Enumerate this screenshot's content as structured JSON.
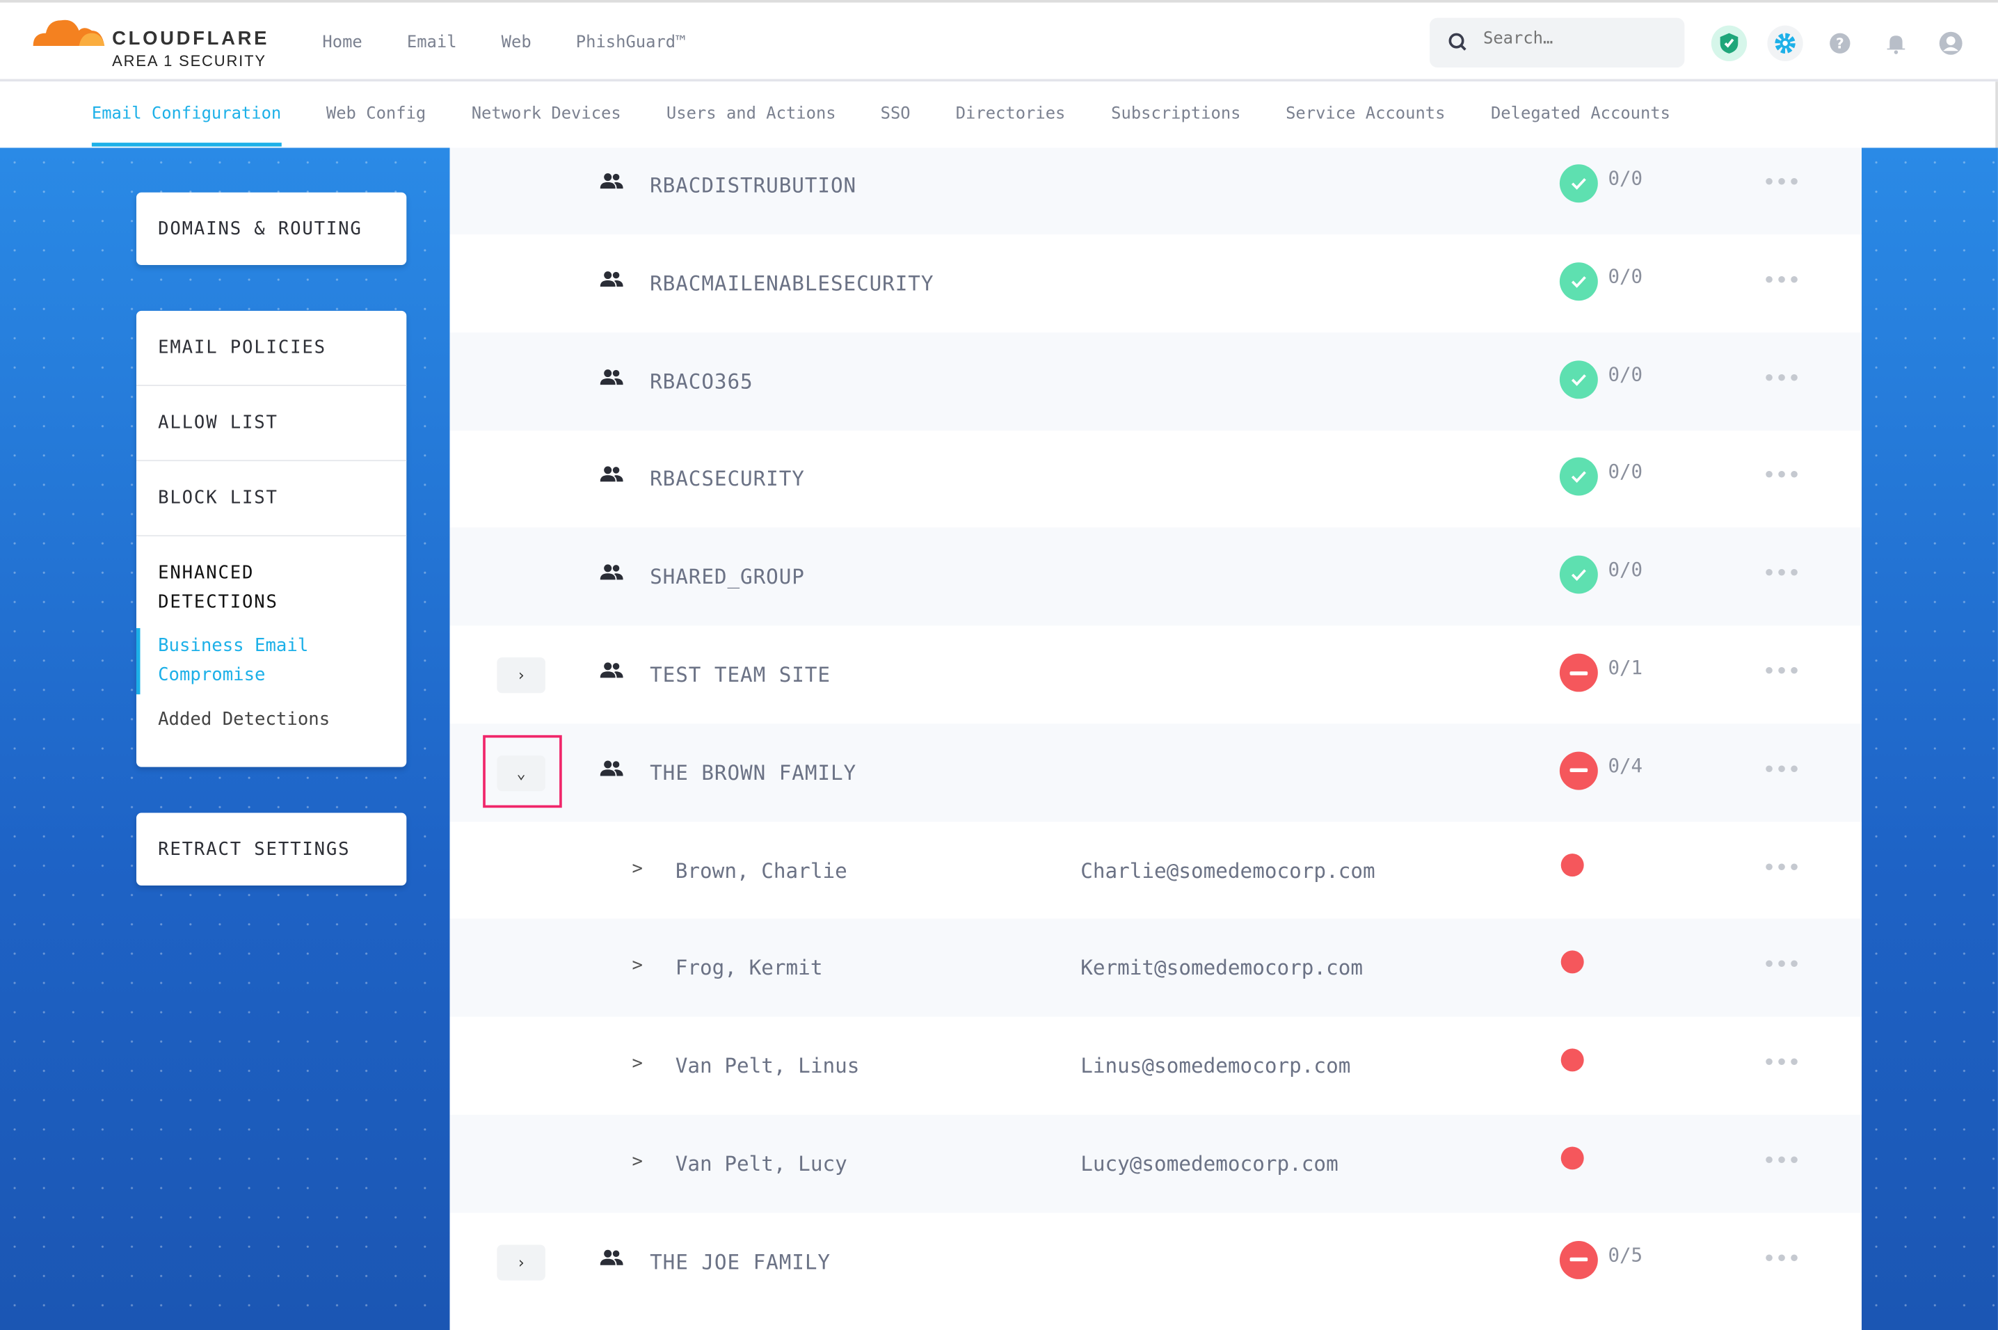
{
  "brand": {
    "name": "CLOUDFLARE",
    "product": "AREA 1 SECURITY"
  },
  "topnav": [
    "Home",
    "Email",
    "Web",
    "PhishGuard™"
  ],
  "search": {
    "placeholder": "Search…"
  },
  "header_icons": [
    "shield-check-icon",
    "gear-icon",
    "help-icon",
    "bell-icon",
    "user-icon"
  ],
  "subnav": {
    "active": "Email Configuration",
    "tabs": [
      "Email Configuration",
      "Web Config",
      "Network Devices",
      "Users and Actions",
      "SSO",
      "Directories",
      "Subscriptions",
      "Service Accounts",
      "Delegated Accounts"
    ]
  },
  "sidebar": {
    "domains": "DOMAINS & ROUTING",
    "policies": [
      "EMAIL POLICIES",
      "ALLOW LIST",
      "BLOCK LIST"
    ],
    "enhanced": "ENHANCED DETECTIONS",
    "bec": "Business Email Compromise",
    "added": "Added Detections",
    "retract": "RETRACT SETTINGS"
  },
  "colors": {
    "accent": "#1db0e8",
    "ok": "#5ee0b0",
    "error": "#f5575c",
    "highlight": "#f0266a"
  },
  "groups": [
    {
      "name": "RBACDISTRUBUTION",
      "status": "ok",
      "count": "0/0"
    },
    {
      "name": "RBACMAILENABLESECURITY",
      "status": "ok",
      "count": "0/0"
    },
    {
      "name": "RBACO365",
      "status": "ok",
      "count": "0/0"
    },
    {
      "name": "RBACSECURITY",
      "status": "ok",
      "count": "0/0"
    },
    {
      "name": "SHARED_GROUP",
      "status": "ok",
      "count": "0/0"
    },
    {
      "name": "TEST TEAM SITE",
      "status": "error",
      "count": "0/1",
      "expandable": true
    },
    {
      "name": "THE BROWN FAMILY",
      "status": "error",
      "count": "0/4",
      "expanded": true,
      "members": [
        {
          "name": "Brown, Charlie",
          "email": "Charlie@somedemocorp.com"
        },
        {
          "name": "Frog, Kermit",
          "email": "Kermit@somedemocorp.com"
        },
        {
          "name": "Van Pelt, Linus",
          "email": "Linus@somedemocorp.com"
        },
        {
          "name": "Van Pelt, Lucy",
          "email": "Lucy@somedemocorp.com"
        }
      ]
    },
    {
      "name": "THE JOE FAMILY",
      "status": "error",
      "count": "0/5",
      "expandable": true
    }
  ],
  "more_label": "•••",
  "collapsed_caret": "›",
  "expanded_caret": "⌄",
  "member_caret": ">"
}
